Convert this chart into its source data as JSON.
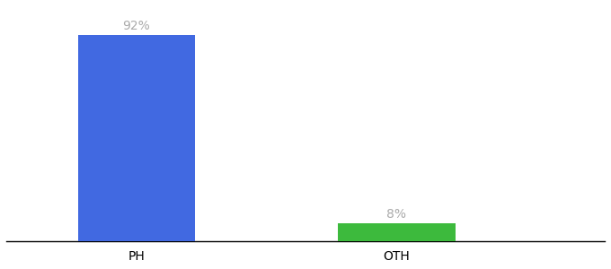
{
  "categories": [
    "PH",
    "OTH"
  ],
  "values": [
    92,
    8
  ],
  "bar_colors": [
    "#4169e1",
    "#3dba3d"
  ],
  "label_texts": [
    "92%",
    "8%"
  ],
  "background_color": "#ffffff",
  "label_color": "#aaaaaa",
  "tick_color": "#c87941",
  "ylim": [
    0,
    105
  ],
  "bar_width": 0.45,
  "label_fontsize": 10,
  "tick_fontsize": 10
}
